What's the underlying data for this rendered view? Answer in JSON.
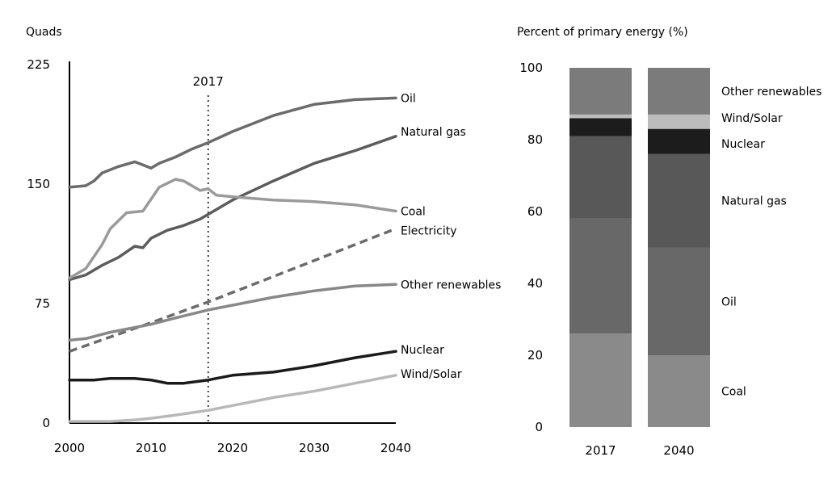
{
  "chart_data": [
    {
      "type": "line",
      "ylabel": "Quads",
      "xlim": [
        2000,
        2040
      ],
      "ylim": [
        0,
        225
      ],
      "x_ticks": [
        2000,
        2010,
        2020,
        2030,
        2040
      ],
      "y_ticks": [
        0,
        75,
        150,
        225
      ],
      "annotation": {
        "label": "2017",
        "x": 2017
      },
      "series": [
        {
          "name": "Oil",
          "color": "#6b6b6b",
          "points": [
            [
              2000,
              148
            ],
            [
              2002,
              149
            ],
            [
              2003,
              152
            ],
            [
              2004,
              157
            ],
            [
              2006,
              161
            ],
            [
              2008,
              164
            ],
            [
              2009,
              162
            ],
            [
              2010,
              160
            ],
            [
              2011,
              163
            ],
            [
              2013,
              167
            ],
            [
              2015,
              172
            ],
            [
              2017,
              176
            ],
            [
              2020,
              183
            ],
            [
              2025,
              193
            ],
            [
              2030,
              200
            ],
            [
              2035,
              203
            ],
            [
              2040,
              204
            ]
          ]
        },
        {
          "name": "Natural gas",
          "color": "#5c5c5c",
          "points": [
            [
              2000,
              90
            ],
            [
              2002,
              93
            ],
            [
              2004,
              99
            ],
            [
              2006,
              104
            ],
            [
              2008,
              111
            ],
            [
              2009,
              110
            ],
            [
              2010,
              116
            ],
            [
              2012,
              121
            ],
            [
              2014,
              124
            ],
            [
              2016,
              128
            ],
            [
              2017,
              131
            ],
            [
              2020,
              140
            ],
            [
              2025,
              152
            ],
            [
              2030,
              163
            ],
            [
              2035,
              171
            ],
            [
              2040,
              180
            ]
          ]
        },
        {
          "name": "Coal",
          "color": "#9a9a9a",
          "points": [
            [
              2000,
              91
            ],
            [
              2002,
              97
            ],
            [
              2004,
              112
            ],
            [
              2005,
              122
            ],
            [
              2007,
              132
            ],
            [
              2009,
              133
            ],
            [
              2011,
              148
            ],
            [
              2013,
              153
            ],
            [
              2014,
              152
            ],
            [
              2016,
              146
            ],
            [
              2017,
              147
            ],
            [
              2018,
              143
            ],
            [
              2020,
              142
            ],
            [
              2025,
              140
            ],
            [
              2030,
              139
            ],
            [
              2035,
              137
            ],
            [
              2040,
              133
            ]
          ]
        },
        {
          "name": "Electricity",
          "color": "#6b6b6b",
          "dashed": true,
          "points": [
            [
              2000,
              45
            ],
            [
              2005,
              54
            ],
            [
              2010,
              63
            ],
            [
              2017,
              76
            ],
            [
              2025,
              92
            ],
            [
              2030,
              102
            ],
            [
              2035,
              112
            ],
            [
              2040,
              122
            ]
          ]
        },
        {
          "name": "Other renewables",
          "color": "#888888",
          "points": [
            [
              2000,
              52
            ],
            [
              2002,
              53
            ],
            [
              2005,
              57
            ],
            [
              2008,
              60
            ],
            [
              2010,
              62
            ],
            [
              2013,
              66
            ],
            [
              2017,
              71
            ],
            [
              2020,
              74
            ],
            [
              2025,
              79
            ],
            [
              2030,
              83
            ],
            [
              2035,
              86
            ],
            [
              2040,
              87
            ]
          ]
        },
        {
          "name": "Nuclear",
          "color": "#1a1a1a",
          "points": [
            [
              2000,
              27
            ],
            [
              2002,
              27
            ],
            [
              2003,
              27
            ],
            [
              2005,
              28
            ],
            [
              2008,
              28
            ],
            [
              2010,
              27
            ],
            [
              2012,
              25
            ],
            [
              2014,
              25
            ],
            [
              2017,
              27
            ],
            [
              2018,
              28
            ],
            [
              2020,
              30
            ],
            [
              2025,
              32
            ],
            [
              2030,
              36
            ],
            [
              2035,
              41
            ],
            [
              2040,
              45
            ]
          ]
        },
        {
          "name": "Wind/Solar",
          "color": "#b8b8b8",
          "points": [
            [
              2000,
              1
            ],
            [
              2005,
              1
            ],
            [
              2008,
              2
            ],
            [
              2010,
              3
            ],
            [
              2013,
              5
            ],
            [
              2017,
              8
            ],
            [
              2020,
              11
            ],
            [
              2025,
              16
            ],
            [
              2030,
              20
            ],
            [
              2035,
              25
            ],
            [
              2040,
              30
            ]
          ]
        }
      ]
    },
    {
      "type": "bar",
      "stacked": true,
      "ylabel": "Percent of primary energy (%)",
      "ylim": [
        0,
        100
      ],
      "y_ticks": [
        0,
        20,
        40,
        60,
        80,
        100
      ],
      "categories": [
        "2017",
        "2040"
      ],
      "series": [
        {
          "name": "Coal",
          "color": "#8a8a8a",
          "values": [
            26,
            20
          ]
        },
        {
          "name": "Oil",
          "color": "#686868",
          "values": [
            32,
            30
          ]
        },
        {
          "name": "Natural gas",
          "color": "#585858",
          "values": [
            23,
            26
          ]
        },
        {
          "name": "Nuclear",
          "color": "#1c1c1c",
          "values": [
            5,
            7
          ]
        },
        {
          "name": "Wind/Solar",
          "color": "#bcbcbc",
          "values": [
            1,
            4
          ]
        },
        {
          "name": "Other renewables",
          "color": "#7b7b7b",
          "values": [
            13,
            13
          ]
        }
      ]
    }
  ]
}
